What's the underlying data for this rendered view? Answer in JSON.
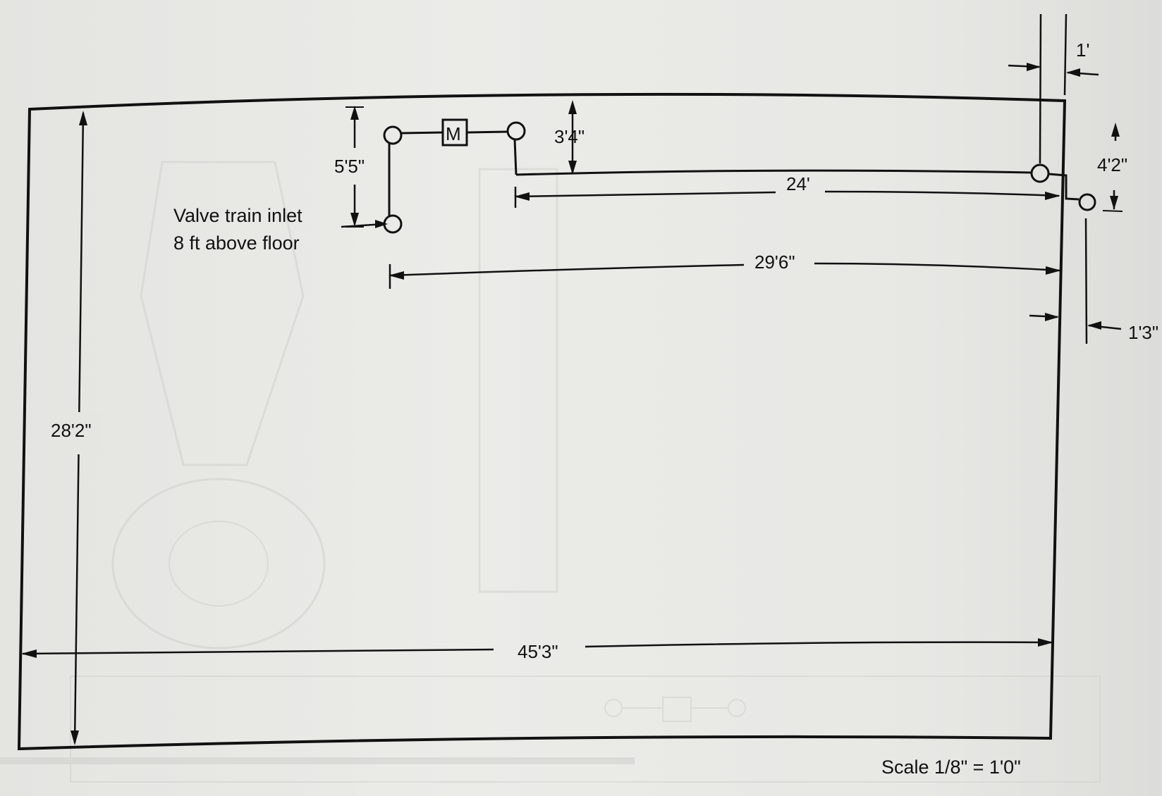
{
  "drawing": {
    "dimensions": {
      "wall_height": "28'2\"",
      "wall_width": "45'3\"",
      "riser_height": "5'5\"",
      "offset_down": "3'4\"",
      "run_upper": "24'",
      "run_lower": "29'6\"",
      "right_offset": "4'2\"",
      "top_gap": "1'",
      "side_gap": "1'3\""
    },
    "inlet_label_line1": "Valve train inlet",
    "inlet_label_line2": "8 ft above floor",
    "meter_label": "M",
    "scale_label": "Scale 1/8\" = 1'0\""
  },
  "colors": {
    "ink": "#111111",
    "paper": "#e6e6e3",
    "bleed_through": "#bdbdbb"
  }
}
